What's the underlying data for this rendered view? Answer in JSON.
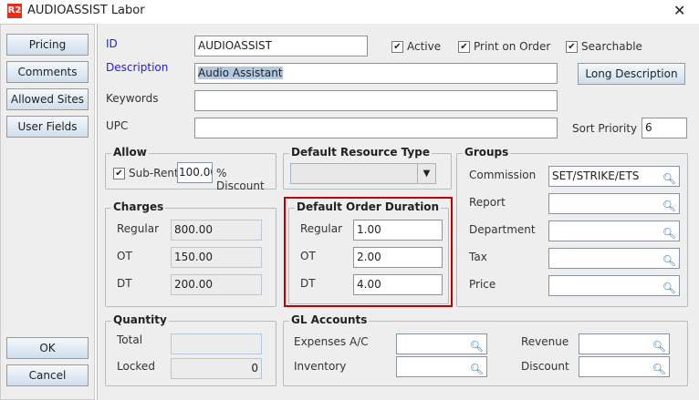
{
  "window": {
    "title": "AUDIOASSIST Labor",
    "logo": "R2",
    "close": "✕"
  },
  "sidebar": {
    "pricing": "Pricing",
    "comments": "Comments",
    "allowed_sites": "Allowed Sites",
    "user_fields": "User Fields",
    "ok": "OK",
    "cancel": "Cancel"
  },
  "form": {
    "id_label": "ID",
    "id_value": "AUDIOASSIST",
    "active": "Active",
    "print_on_order": "Print on Order",
    "searchable": "Searchable",
    "description_label": "Description",
    "description_value": "Audio Assistant",
    "long_description": "Long Description",
    "keywords_label": "Keywords",
    "upc_label": "UPC",
    "sort_priority_label": "Sort Priority",
    "sort_priority_value": "6"
  },
  "allow": {
    "title": "Allow",
    "subrent": "Sub-Rent",
    "discount_value": "100.00",
    "discount_label": "% Discount"
  },
  "resource_type": {
    "title": "Default Resource Type",
    "value": ""
  },
  "groups": {
    "title": "Groups",
    "items": [
      {
        "label": "Commission",
        "value": "SET/STRIKE/ETS"
      },
      {
        "label": "Report",
        "value": ""
      },
      {
        "label": "Department",
        "value": ""
      },
      {
        "label": "Tax",
        "value": ""
      },
      {
        "label": "Price",
        "value": ""
      }
    ]
  },
  "charges": {
    "title": "Charges",
    "items": [
      {
        "label": "Regular",
        "value": "800.00"
      },
      {
        "label": "OT",
        "value": "150.00"
      },
      {
        "label": "DT",
        "value": "200.00"
      }
    ]
  },
  "duration": {
    "title": "Default Order Duration",
    "items": [
      {
        "label": "Regular",
        "value": "1.00"
      },
      {
        "label": "OT",
        "value": "2.00"
      },
      {
        "label": "DT",
        "value": "4.00"
      }
    ]
  },
  "quantity": {
    "title": "Quantity",
    "total_label": "Total",
    "total_value": "",
    "locked_label": "Locked",
    "locked_value": "0"
  },
  "gl": {
    "title": "GL Accounts",
    "expenses": "Expenses A/C",
    "inventory": "Inventory",
    "revenue": "Revenue",
    "discount": "Discount"
  },
  "colors": {
    "highlight": "#c00000",
    "label_blue": "#1a1aff"
  }
}
